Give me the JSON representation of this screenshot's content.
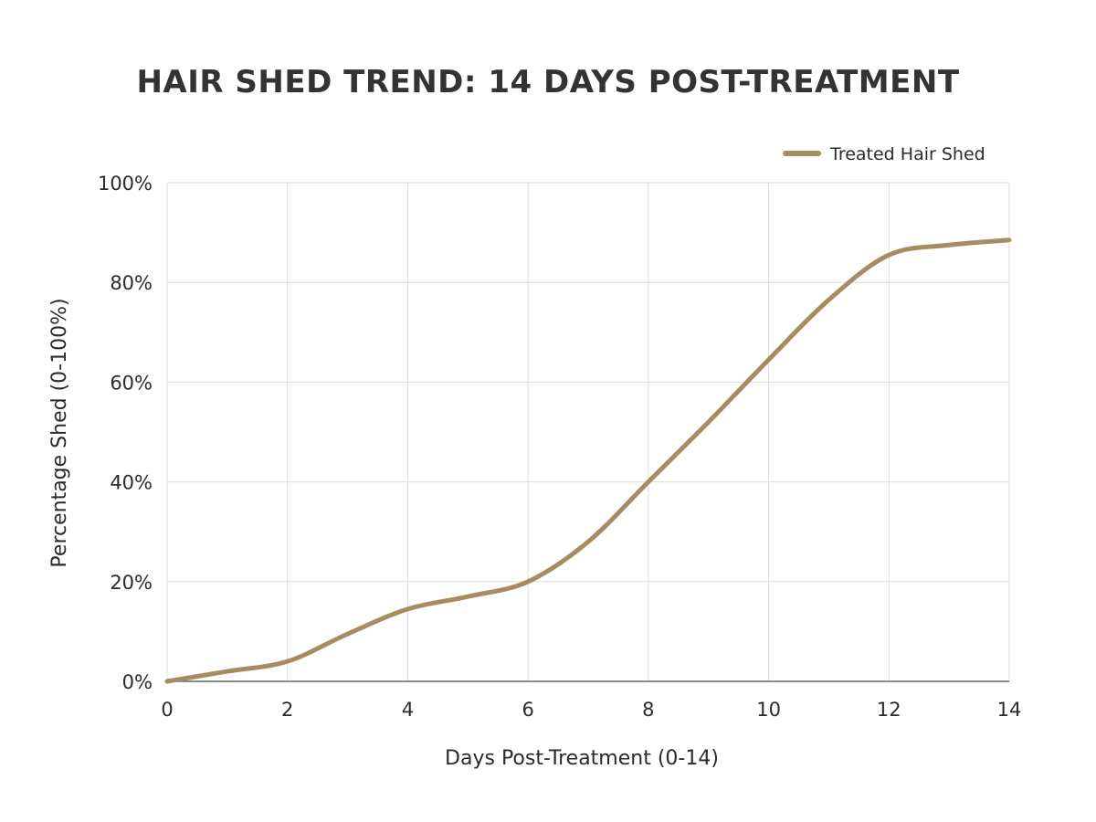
{
  "chart_data": {
    "type": "line",
    "title": "HAIR SHED TREND: 14 DAYS POST-TREATMENT",
    "xlabel": "Days Post-Treatment (0-14)",
    "ylabel": "Percentage Shed (0-100%)",
    "xlim": [
      0,
      14
    ],
    "ylim": [
      0,
      100
    ],
    "x_ticks": [
      "0",
      "2",
      "4",
      "6",
      "8",
      "10",
      "12",
      "14"
    ],
    "x_tick_values": [
      0,
      2,
      4,
      6,
      8,
      10,
      12,
      14
    ],
    "y_ticks": [
      "0%",
      "20%",
      "40%",
      "60%",
      "80%",
      "100%"
    ],
    "y_tick_values": [
      0,
      20,
      40,
      60,
      80,
      100
    ],
    "grid": true,
    "legend_position": "top-right",
    "series": [
      {
        "name": "Treated Hair Shed",
        "color": "#A88B60",
        "x": [
          0,
          1,
          2,
          3,
          4,
          5,
          6,
          7,
          8,
          9,
          10,
          11,
          12,
          13,
          14
        ],
        "y": [
          0,
          2,
          4,
          9.5,
          14.5,
          17,
          20,
          28,
          40,
          52,
          64.5,
          76.5,
          85.5,
          87.5,
          88.5
        ]
      }
    ]
  }
}
